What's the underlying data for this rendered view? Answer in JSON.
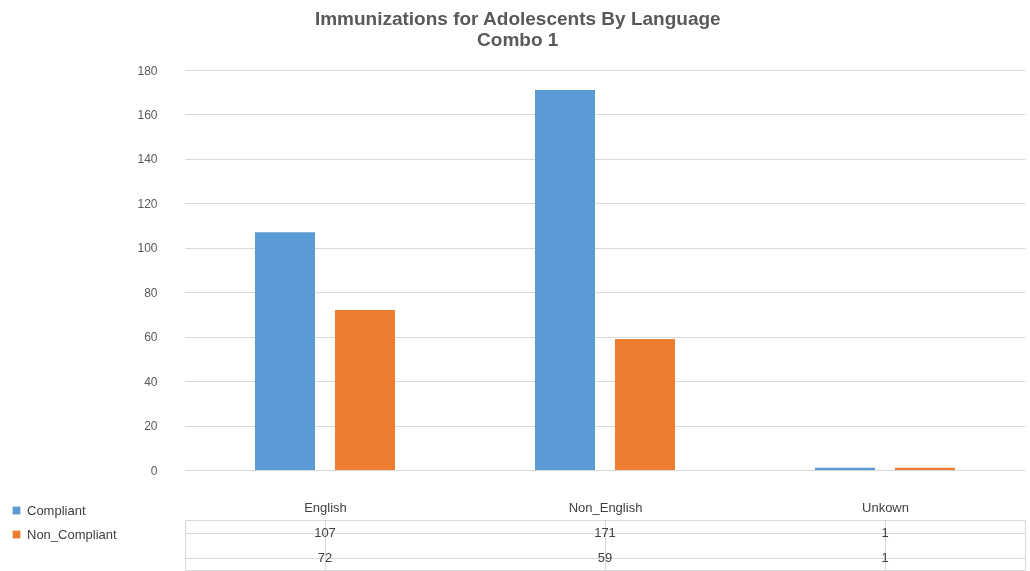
{
  "chart_data": {
    "type": "bar",
    "title": "Immunizations for Adolescents By Language\nCombo 1",
    "categories": [
      "English",
      "Non_English",
      "Unkown"
    ],
    "series": [
      {
        "name": "Compliant",
        "color": "#5b9bd5",
        "values": [
          107,
          171,
          1
        ]
      },
      {
        "name": "Non_Compliant",
        "color": "#ed7d31",
        "values": [
          72,
          59,
          1
        ]
      }
    ],
    "ylim": [
      0,
      180
    ],
    "yticks": [
      0,
      20,
      40,
      60,
      80,
      100,
      120,
      140,
      160,
      180
    ],
    "grid": "y",
    "legend": "bottom left",
    "data_labels": true
  }
}
